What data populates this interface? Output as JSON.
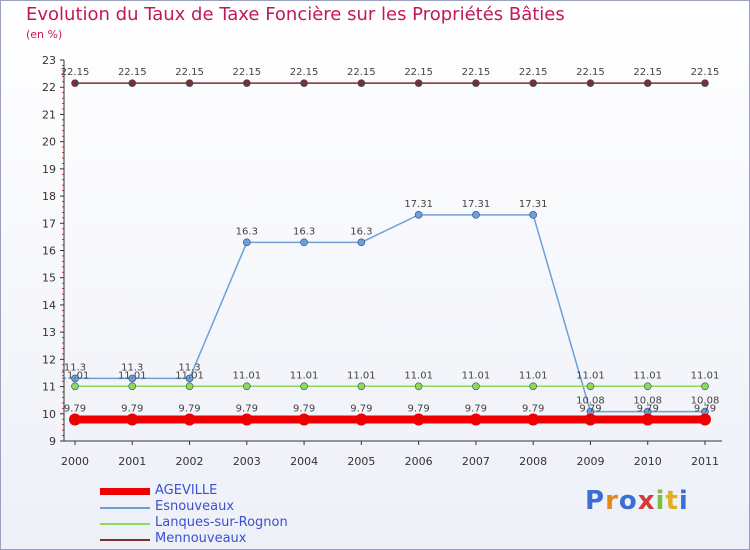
{
  "chart_data": {
    "type": "line",
    "title": "Evolution du Taux de Taxe Foncière sur les Propriétés Bâties",
    "unit_label": "(en %)",
    "categories": [
      "2000",
      "2001",
      "2002",
      "2003",
      "2004",
      "2005",
      "2006",
      "2007",
      "2008",
      "2009",
      "2010",
      "2011"
    ],
    "ylim": [
      9,
      23
    ],
    "yticks": [
      9,
      10,
      11,
      12,
      13,
      14,
      15,
      16,
      17,
      18,
      19,
      20,
      21,
      22,
      23
    ],
    "grid": false,
    "legend_position": "bottom-left",
    "series": [
      {
        "name": "Mennouveaux",
        "color": "#7b3030",
        "values": [
          22.15,
          22.15,
          22.15,
          22.15,
          22.15,
          22.15,
          22.15,
          22.15,
          22.15,
          22.15,
          22.15,
          22.15
        ],
        "labels": [
          "22.15",
          "22.15",
          "22.15",
          "22.15",
          "22.15",
          "22.15",
          "22.15",
          "22.15",
          "22.15",
          "22.15",
          "22.15",
          "22.15"
        ]
      },
      {
        "name": "Esnouveaux",
        "color": "#6e9fd6",
        "values": [
          11.3,
          11.3,
          11.3,
          16.3,
          16.3,
          16.3,
          17.31,
          17.31,
          17.31,
          10.08,
          10.08,
          10.08
        ],
        "labels": [
          "11.3",
          "11.3",
          "11.3",
          "16.3",
          "16.3",
          "16.3",
          "17.31",
          "17.31",
          "17.31",
          "10.08",
          "10.08",
          "10.08"
        ]
      },
      {
        "name": "Lanques-sur-Rognon",
        "color": "#8ed85a",
        "values": [
          11.01,
          11.01,
          11.01,
          11.01,
          11.01,
          11.01,
          11.01,
          11.01,
          11.01,
          11.01,
          11.01,
          11.01
        ],
        "labels": [
          "11.01",
          "11.01",
          "11.01",
          "11.01",
          "11.01",
          "11.01",
          "11.01",
          "11.01",
          "11.01",
          "11.01",
          "11.01",
          "11.01"
        ]
      },
      {
        "name": "AGEVILLE",
        "color": "#ee0000",
        "values": [
          9.79,
          9.79,
          9.79,
          9.79,
          9.79,
          9.79,
          9.79,
          9.79,
          9.79,
          9.79,
          9.79,
          9.79
        ],
        "labels": [
          "9.79",
          "9.79",
          "9.79",
          "9.79",
          "9.79",
          "9.79",
          "9.79",
          "9.79",
          "9.79",
          "9.79",
          "9.79",
          "9.79"
        ]
      }
    ]
  },
  "legend": [
    {
      "name": "AGEVILLE",
      "color": "#ee0000"
    },
    {
      "name": "Esnouveaux",
      "color": "#6e9fd6"
    },
    {
      "name": "Lanques-sur-Rognon",
      "color": "#8ed85a"
    },
    {
      "name": "Mennouveaux",
      "color": "#7b3030"
    }
  ],
  "brand": {
    "text": "Proxiti"
  }
}
